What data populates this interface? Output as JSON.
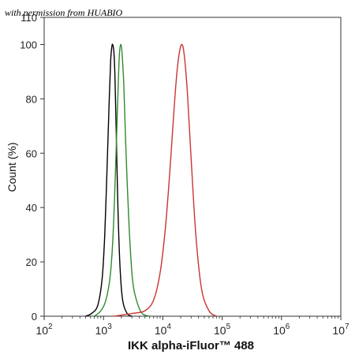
{
  "watermark": "with permission from HUABIO",
  "chart_data": {
    "type": "line",
    "title": "",
    "xlabel": "IKK alpha-iFluor™ 488",
    "ylabel": "Count (%)",
    "x_scale": "log",
    "xlim": [
      100,
      10000000
    ],
    "ylim": [
      0,
      110
    ],
    "x_ticks": [
      {
        "value": 100,
        "base": "10",
        "exp": "2"
      },
      {
        "value": 1000,
        "base": "10",
        "exp": "3"
      },
      {
        "value": 10000,
        "base": "10",
        "exp": "4"
      },
      {
        "value": 100000,
        "base": "10",
        "exp": "5"
      },
      {
        "value": 1000000,
        "base": "10",
        "exp": "6"
      },
      {
        "value": 10000000,
        "base": "10",
        "exp": "7"
      }
    ],
    "y_ticks": [
      0,
      20,
      40,
      60,
      80,
      100,
      110
    ],
    "grid": false,
    "legend": "none",
    "series": [
      {
        "color": "#000000",
        "x": [
          500,
          630,
          800,
          950,
          1050,
          1150,
          1250,
          1320,
          1380,
          1430,
          1500,
          1560,
          1650,
          1750,
          1900,
          2100,
          2500,
          3000
        ],
        "y": [
          0,
          1,
          4,
          14,
          30,
          55,
          80,
          94,
          99,
          100,
          97,
          88,
          65,
          40,
          18,
          6,
          1,
          0
        ]
      },
      {
        "color": "#2e8b2e",
        "x": [
          700,
          900,
          1100,
          1300,
          1450,
          1600,
          1750,
          1850,
          1950,
          2050,
          2200,
          2400,
          2700,
          3100,
          3700,
          4500,
          6000
        ],
        "y": [
          0,
          2,
          6,
          15,
          30,
          55,
          82,
          96,
          100,
          97,
          85,
          60,
          33,
          13,
          5,
          1,
          0
        ]
      },
      {
        "color": "#cc3333",
        "x": [
          1500,
          3000,
          5000,
          7000,
          9000,
          11000,
          13000,
          15000,
          17000,
          19000,
          21000,
          23000,
          26000,
          30000,
          36000,
          45000,
          60000,
          80000
        ],
        "y": [
          0,
          1,
          2,
          6,
          16,
          32,
          52,
          72,
          88,
          97,
          100,
          96,
          82,
          58,
          30,
          10,
          2,
          0
        ]
      }
    ]
  }
}
